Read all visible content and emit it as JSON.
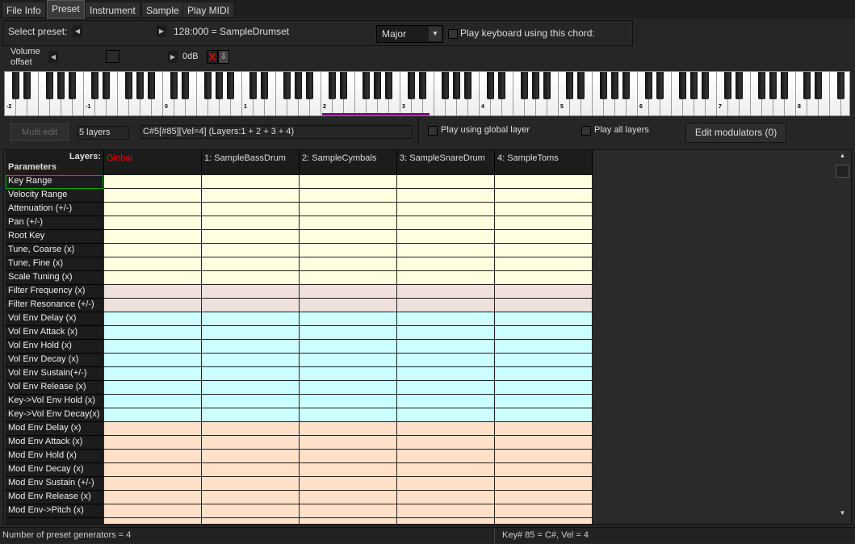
{
  "tabs": [
    "File Info",
    "Preset",
    "Instrument",
    "Sample",
    "Play MIDI"
  ],
  "active_tab": "Preset",
  "preset": {
    "label": "Select preset:",
    "value": "128:000 = SampleDrumset"
  },
  "chord": {
    "selected": "Major",
    "checkbox_label": "Play keyboard using this chord:",
    "checked": false
  },
  "volume": {
    "label": "Volume offset",
    "value": "0dB",
    "slider_fraction": 0.5
  },
  "keyboard": {
    "octave_labels": [
      "-2",
      "-1",
      "0",
      "1",
      "2",
      "3",
      "4",
      "5",
      "6",
      "7",
      "8"
    ],
    "highlight_color": "#800080"
  },
  "controls": {
    "multi_edit": "Multi edit",
    "layers_count": "5 layers",
    "info": "C#5[#85][Vel=4] (Layers:1 + 2 + 3 + 4)",
    "play_global": "Play using global layer",
    "play_all": "Play all layers",
    "edit_modulators": "Edit modulators (0)"
  },
  "table": {
    "layers_label": "Layers:",
    "params_label": "Parameters",
    "columns": [
      "Global",
      "1: SampleBassDrum",
      "2: SampleCymbals",
      "3: SampleSnareDrum",
      "4: SampleToms"
    ],
    "global_color": "#ff0000",
    "group_colors": {
      "key": "#ffffe0",
      "filter": "#f0e0dc",
      "vol": "#ccffff",
      "mod": "#ffe0c8"
    },
    "rows": [
      {
        "label": "Key Range",
        "group": "key"
      },
      {
        "label": "Velocity Range",
        "group": "key"
      },
      {
        "label": "Attenuation (+/-)",
        "group": "key"
      },
      {
        "label": "Pan (+/-)",
        "group": "key"
      },
      {
        "label": "Root Key",
        "group": "key"
      },
      {
        "label": "Tune, Coarse (x)",
        "group": "key"
      },
      {
        "label": "Tune, Fine (x)",
        "group": "key"
      },
      {
        "label": "Scale Tuning (x)",
        "group": "key"
      },
      {
        "label": "Filter Frequency (x)",
        "group": "filter"
      },
      {
        "label": "Filter Resonance (+/-)",
        "group": "filter"
      },
      {
        "label": "Vol Env Delay (x)",
        "group": "vol"
      },
      {
        "label": "Vol Env Attack (x)",
        "group": "vol"
      },
      {
        "label": "Vol Env Hold (x)",
        "group": "vol"
      },
      {
        "label": "Vol Env Decay (x)",
        "group": "vol"
      },
      {
        "label": "Vol Env Sustain(+/-)",
        "group": "vol"
      },
      {
        "label": "Vol Env Release (x)",
        "group": "vol"
      },
      {
        "label": "Key->Vol Env Hold (x)",
        "group": "vol"
      },
      {
        "label": "Key->Vol Env Decay(x)",
        "group": "vol"
      },
      {
        "label": "Mod Env Delay (x)",
        "group": "mod"
      },
      {
        "label": "Mod Env Attack (x)",
        "group": "mod"
      },
      {
        "label": "Mod Env Hold (x)",
        "group": "mod"
      },
      {
        "label": "Mod Env Decay (x)",
        "group": "mod"
      },
      {
        "label": "Mod Env Sustain (+/-)",
        "group": "mod"
      },
      {
        "label": "Mod Env Release (x)",
        "group": "mod"
      },
      {
        "label": "Mod Env->Pitch (x)",
        "group": "mod"
      },
      {
        "label": "",
        "group": "mod"
      }
    ]
  },
  "status": {
    "left": "Number of preset generators = 4",
    "right": "Key# 85 = C#, Vel = 4"
  }
}
